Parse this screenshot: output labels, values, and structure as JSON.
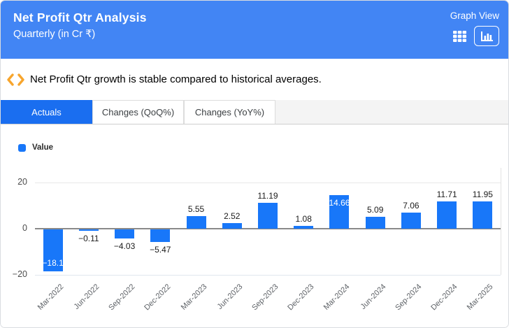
{
  "header": {
    "title": "Net Profit Qtr Analysis",
    "subtitle": "Quarterly (in Cr ₹)",
    "view_label": "Graph View"
  },
  "insight": {
    "text": "Net Profit Qtr growth is stable compared to historical averages."
  },
  "tabs": [
    {
      "label": "Actuals",
      "active": true
    },
    {
      "label": "Changes (QoQ%)",
      "active": false
    },
    {
      "label": "Changes (YoY%)",
      "active": false
    }
  ],
  "legend": {
    "label": "Value"
  },
  "colors": {
    "header_blue": "#4285f4",
    "active_tab_blue": "#1a6ef0",
    "bar_blue": "#1877f9",
    "insight_orange": "#f7a52d",
    "zero_axis_gray": "#8a8a8a"
  },
  "chart_data": {
    "type": "bar",
    "title": "Net Profit Qtr Analysis",
    "subtitle": "Quarterly (in Cr ₹)",
    "series_name": "Value",
    "categories": [
      "Mar-2022",
      "Jun-2022",
      "Sep-2022",
      "Dec-2022",
      "Mar-2023",
      "Jun-2023",
      "Sep-2023",
      "Dec-2023",
      "Mar-2024",
      "Jun-2024",
      "Sep-2024",
      "Dec-2024",
      "Mar-2025"
    ],
    "values": [
      -18.1,
      -0.11,
      -4.03,
      -5.47,
      5.55,
      2.52,
      11.19,
      1.08,
      14.66,
      5.09,
      7.06,
      11.71,
      11.95
    ],
    "value_labels": [
      "−18.1",
      "−0.11",
      "−4.03",
      "−5.47",
      "5.55",
      "2.52",
      "11.19",
      "1.08",
      "14.66",
      "5.09",
      "7.06",
      "11.71",
      "11.95"
    ],
    "inside_label_indices": [
      0,
      8
    ],
    "ylim": [
      -20,
      20
    ],
    "yticks": [
      20,
      0,
      -20
    ],
    "ytick_labels": [
      "20",
      "0",
      "−20"
    ],
    "grid": true,
    "legend_position": "top-left",
    "xlabel": "",
    "ylabel": ""
  }
}
